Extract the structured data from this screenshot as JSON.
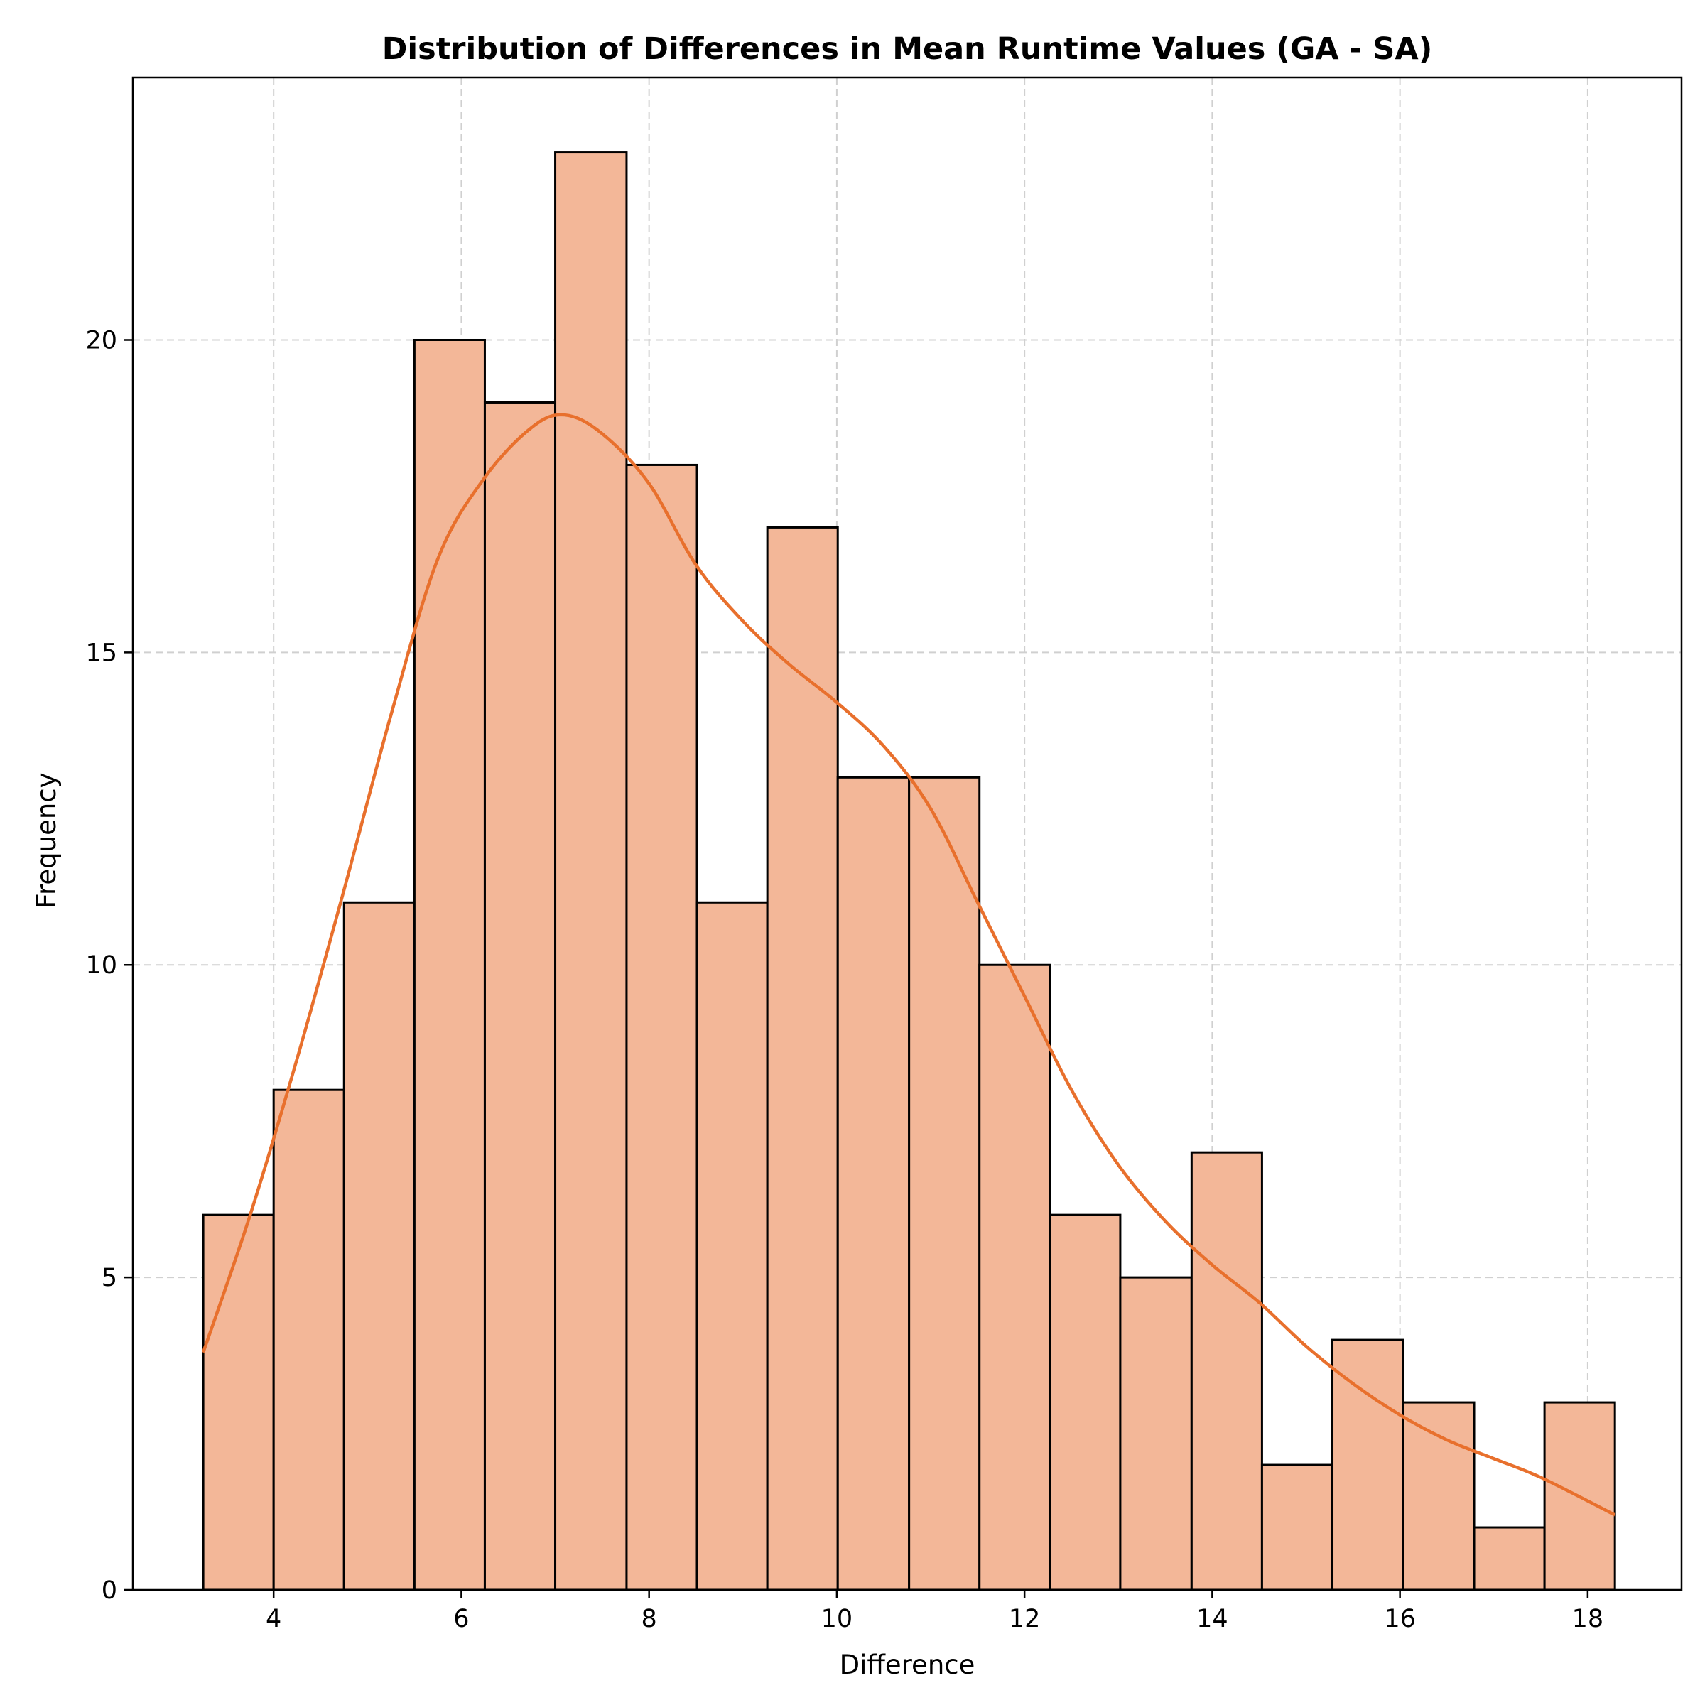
{
  "chart_data": {
    "type": "bar",
    "subtype": "histogram",
    "title": "Distribution of Differences in Mean Runtime Values (GA - SA)",
    "xlabel": "Difference",
    "ylabel": "Frequency",
    "xlim": [
      2.5,
      19.0
    ],
    "ylim": [
      0,
      24.2
    ],
    "xticks": [
      4,
      6,
      8,
      10,
      12,
      14,
      16,
      18
    ],
    "yticks": [
      0,
      5,
      10,
      15,
      20
    ],
    "grid": true,
    "bins": [
      {
        "x0": 3.25,
        "x1": 4.0,
        "count": 6
      },
      {
        "x0": 4.0,
        "x1": 4.75,
        "count": 8
      },
      {
        "x0": 4.75,
        "x1": 5.5,
        "count": 11
      },
      {
        "x0": 5.5,
        "x1": 6.25,
        "count": 20
      },
      {
        "x0": 6.25,
        "x1": 7.0,
        "count": 19
      },
      {
        "x0": 7.0,
        "x1": 7.76,
        "count": 23
      },
      {
        "x0": 7.76,
        "x1": 8.51,
        "count": 18
      },
      {
        "x0": 8.51,
        "x1": 9.26,
        "count": 11
      },
      {
        "x0": 9.26,
        "x1": 10.01,
        "count": 17
      },
      {
        "x0": 10.01,
        "x1": 10.77,
        "count": 13
      },
      {
        "x0": 10.77,
        "x1": 11.52,
        "count": 13
      },
      {
        "x0": 11.52,
        "x1": 12.27,
        "count": 10
      },
      {
        "x0": 12.27,
        "x1": 13.02,
        "count": 6
      },
      {
        "x0": 13.02,
        "x1": 13.78,
        "count": 5
      },
      {
        "x0": 13.78,
        "x1": 14.53,
        "count": 7
      },
      {
        "x0": 14.53,
        "x1": 15.28,
        "count": 2
      },
      {
        "x0": 15.28,
        "x1": 16.03,
        "count": 4
      },
      {
        "x0": 16.03,
        "x1": 16.79,
        "count": 3
      },
      {
        "x0": 16.79,
        "x1": 17.54,
        "count": 1
      },
      {
        "x0": 17.54,
        "x1": 18.29,
        "count": 3
      }
    ],
    "kde": {
      "x": [
        3.25,
        3.75,
        4.25,
        4.75,
        5.25,
        5.75,
        6.25,
        6.75,
        7.1,
        7.5,
        8.0,
        8.5,
        9.0,
        9.5,
        10.0,
        10.5,
        11.0,
        11.5,
        12.0,
        12.5,
        13.0,
        13.5,
        14.0,
        14.5,
        15.0,
        15.5,
        16.0,
        16.5,
        17.0,
        17.5,
        18.29
      ],
      "y": [
        3.8,
        6.0,
        8.5,
        11.2,
        14.0,
        16.5,
        17.8,
        18.6,
        18.8,
        18.5,
        17.7,
        16.4,
        15.5,
        14.8,
        14.2,
        13.5,
        12.5,
        11.0,
        9.5,
        8.0,
        6.8,
        5.9,
        5.2,
        4.6,
        3.9,
        3.3,
        2.8,
        2.4,
        2.1,
        1.8,
        1.2
      ]
    },
    "colors": {
      "bar_fill": "#f3b798",
      "bar_edge": "#000000",
      "kde_line": "#e8702d",
      "grid": "#d0d0d0"
    }
  }
}
